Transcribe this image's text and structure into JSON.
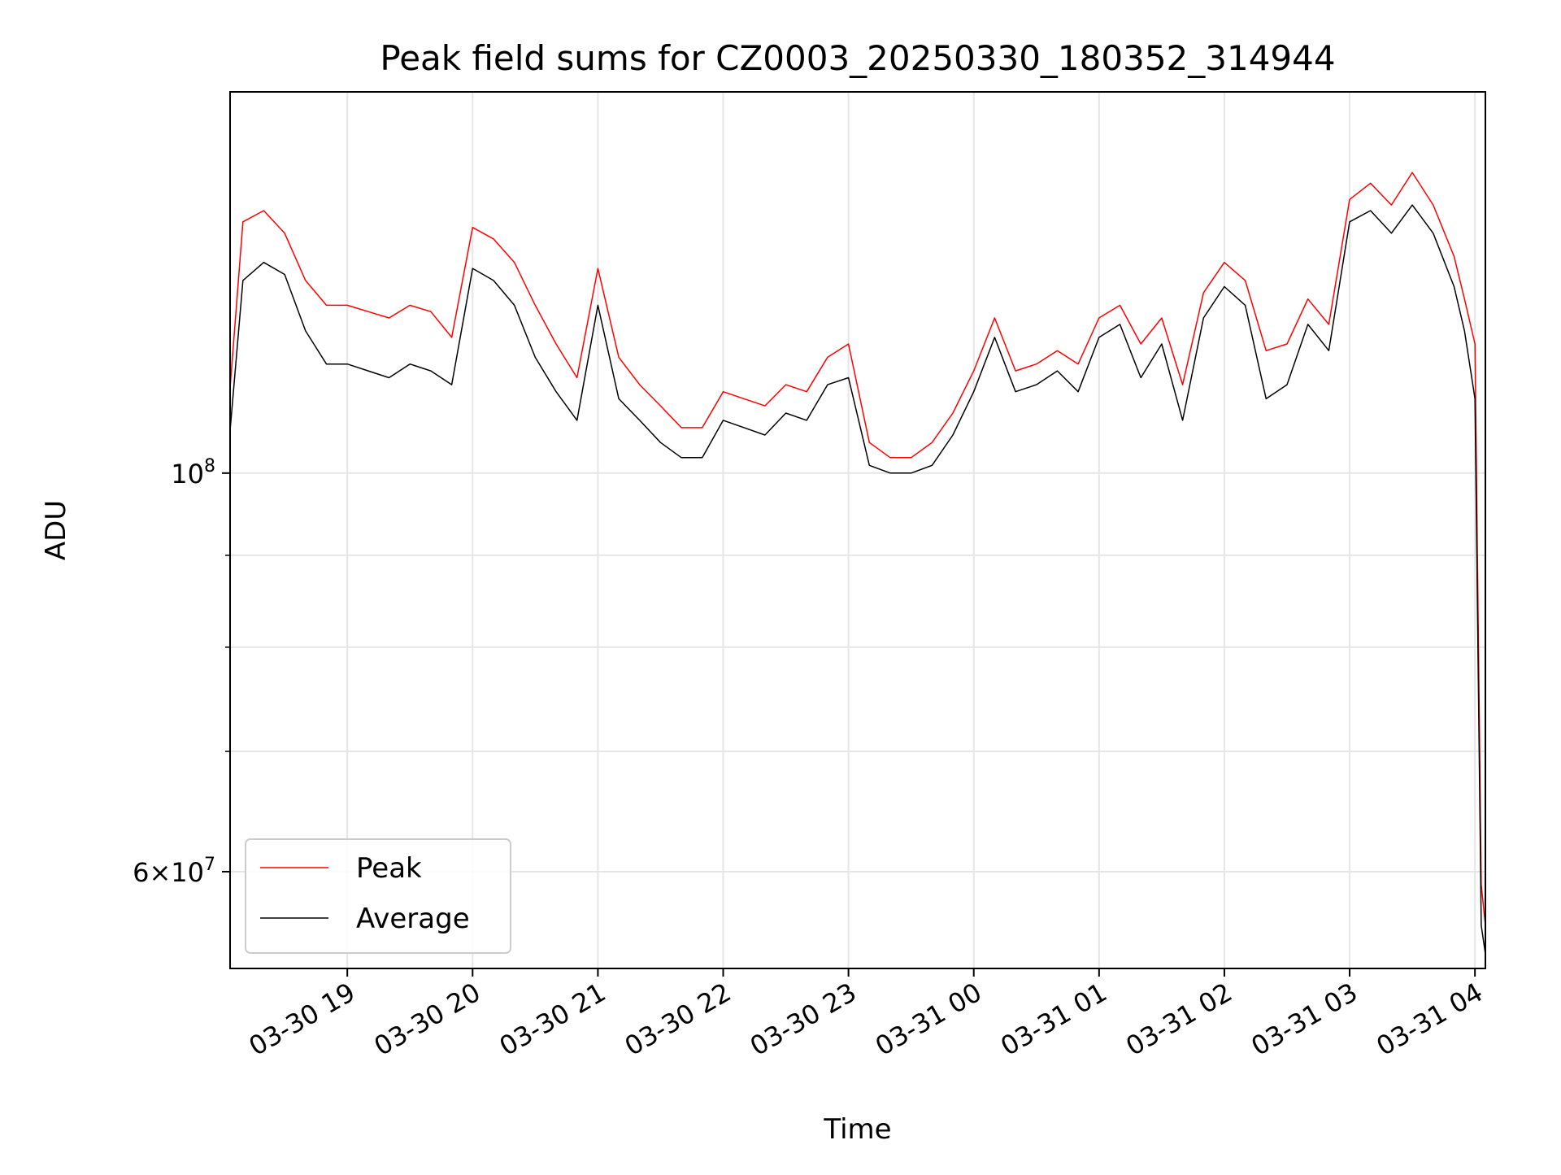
{
  "chart_data": {
    "type": "line",
    "title": "Peak field sums for CZ0003_20250330_180352_314944",
    "xlabel": "Time",
    "ylabel": "ADU",
    "yscale": "log",
    "grid": true,
    "legend_placement": "lower-left",
    "xlim": [
      "2025-03-30 18:03:52",
      "2025-03-31 04:05:00"
    ],
    "ylim": [
      53000000,
      163000000
    ],
    "x_ticks": [
      {
        "value": "2025-03-30 19:00",
        "label": "03-30 19"
      },
      {
        "value": "2025-03-30 20:00",
        "label": "03-30 20"
      },
      {
        "value": "2025-03-30 21:00",
        "label": "03-30 21"
      },
      {
        "value": "2025-03-30 22:00",
        "label": "03-30 22"
      },
      {
        "value": "2025-03-30 23:00",
        "label": "03-30 23"
      },
      {
        "value": "2025-03-31 00:00",
        "label": "03-31 00"
      },
      {
        "value": "2025-03-31 01:00",
        "label": "03-31 01"
      },
      {
        "value": "2025-03-31 02:00",
        "label": "03-31 02"
      },
      {
        "value": "2025-03-31 03:00",
        "label": "03-31 03"
      },
      {
        "value": "2025-03-31 04:00",
        "label": "03-31 04"
      }
    ],
    "y_ticks": [
      {
        "value": 100000000,
        "base": "10",
        "exp": "8"
      },
      {
        "value": 60000000,
        "mantissa": "6",
        "base": "10",
        "exp": "7"
      }
    ],
    "y_minor_ticks": [
      70000000,
      80000000,
      90000000
    ],
    "series": [
      {
        "name": "Peak",
        "color": "#ff0000",
        "x": [
          "2025-03-30 18:04",
          "2025-03-30 18:10",
          "2025-03-30 18:20",
          "2025-03-30 18:30",
          "2025-03-30 18:40",
          "2025-03-30 18:50",
          "2025-03-30 19:00",
          "2025-03-30 19:10",
          "2025-03-30 19:20",
          "2025-03-30 19:30",
          "2025-03-30 19:40",
          "2025-03-30 19:50",
          "2025-03-30 20:00",
          "2025-03-30 20:10",
          "2025-03-30 20:20",
          "2025-03-30 20:30",
          "2025-03-30 20:40",
          "2025-03-30 20:50",
          "2025-03-30 21:00",
          "2025-03-30 21:10",
          "2025-03-30 21:20",
          "2025-03-30 21:30",
          "2025-03-30 21:40",
          "2025-03-30 21:50",
          "2025-03-30 22:00",
          "2025-03-30 22:10",
          "2025-03-30 22:20",
          "2025-03-30 22:30",
          "2025-03-30 22:40",
          "2025-03-30 22:50",
          "2025-03-30 23:00",
          "2025-03-30 23:10",
          "2025-03-30 23:20",
          "2025-03-30 23:30",
          "2025-03-30 23:40",
          "2025-03-30 23:50",
          "2025-03-31 00:00",
          "2025-03-31 00:10",
          "2025-03-31 00:20",
          "2025-03-31 00:30",
          "2025-03-31 00:40",
          "2025-03-31 00:50",
          "2025-03-31 01:00",
          "2025-03-31 01:10",
          "2025-03-31 01:20",
          "2025-03-31 01:30",
          "2025-03-31 01:40",
          "2025-03-31 01:50",
          "2025-03-31 02:00",
          "2025-03-31 02:10",
          "2025-03-31 02:20",
          "2025-03-31 02:30",
          "2025-03-31 02:40",
          "2025-03-31 02:50",
          "2025-03-31 03:00",
          "2025-03-31 03:10",
          "2025-03-31 03:20",
          "2025-03-31 03:30",
          "2025-03-31 03:40",
          "2025-03-31 03:50",
          "2025-03-31 03:55",
          "2025-03-31 04:00",
          "2025-03-31 04:03",
          "2025-03-31 04:05"
        ],
        "values": [
          112000000,
          138000000,
          140000000,
          136000000,
          128000000,
          124000000,
          124000000,
          123000000,
          122000000,
          124000000,
          123000000,
          119000000,
          137000000,
          135000000,
          131000000,
          124000000,
          118000000,
          113000000,
          130000000,
          116000000,
          112000000,
          109000000,
          106000000,
          106000000,
          111000000,
          110000000,
          109000000,
          112000000,
          111000000,
          116000000,
          118000000,
          104000000,
          102000000,
          102000000,
          104000000,
          108000000,
          114000000,
          122000000,
          114000000,
          115000000,
          117000000,
          115000000,
          122000000,
          124000000,
          118000000,
          122000000,
          112000000,
          126000000,
          131000000,
          128000000,
          117000000,
          118000000,
          125000000,
          121000000,
          142000000,
          145000000,
          141000000,
          147000000,
          141000000,
          132000000,
          125000000,
          118000000,
          59000000,
          56000000
        ]
      },
      {
        "name": "Average",
        "color": "#000000",
        "x": [
          "2025-03-30 18:04",
          "2025-03-30 18:10",
          "2025-03-30 18:20",
          "2025-03-30 18:30",
          "2025-03-30 18:40",
          "2025-03-30 18:50",
          "2025-03-30 19:00",
          "2025-03-30 19:10",
          "2025-03-30 19:20",
          "2025-03-30 19:30",
          "2025-03-30 19:40",
          "2025-03-30 19:50",
          "2025-03-30 20:00",
          "2025-03-30 20:10",
          "2025-03-30 20:20",
          "2025-03-30 20:30",
          "2025-03-30 20:40",
          "2025-03-30 20:50",
          "2025-03-30 21:00",
          "2025-03-30 21:10",
          "2025-03-30 21:20",
          "2025-03-30 21:30",
          "2025-03-30 21:40",
          "2025-03-30 21:50",
          "2025-03-30 22:00",
          "2025-03-30 22:10",
          "2025-03-30 22:20",
          "2025-03-30 22:30",
          "2025-03-30 22:40",
          "2025-03-30 22:50",
          "2025-03-30 23:00",
          "2025-03-30 23:10",
          "2025-03-30 23:20",
          "2025-03-30 23:30",
          "2025-03-30 23:40",
          "2025-03-30 23:50",
          "2025-03-31 00:00",
          "2025-03-31 00:10",
          "2025-03-31 00:20",
          "2025-03-31 00:30",
          "2025-03-31 00:40",
          "2025-03-31 00:50",
          "2025-03-31 01:00",
          "2025-03-31 01:10",
          "2025-03-31 01:20",
          "2025-03-31 01:30",
          "2025-03-31 01:40",
          "2025-03-31 01:50",
          "2025-03-31 02:00",
          "2025-03-31 02:10",
          "2025-03-31 02:20",
          "2025-03-31 02:30",
          "2025-03-31 02:40",
          "2025-03-31 02:50",
          "2025-03-31 03:00",
          "2025-03-31 03:10",
          "2025-03-31 03:20",
          "2025-03-31 03:30",
          "2025-03-31 03:40",
          "2025-03-31 03:50",
          "2025-03-31 03:55",
          "2025-03-31 04:00",
          "2025-03-31 04:03",
          "2025-03-31 04:05"
        ],
        "values": [
          106000000,
          128000000,
          131000000,
          129000000,
          120000000,
          115000000,
          115000000,
          114000000,
          113000000,
          115000000,
          114000000,
          112000000,
          130000000,
          128000000,
          124000000,
          116000000,
          111000000,
          107000000,
          124000000,
          110000000,
          107000000,
          104000000,
          102000000,
          102000000,
          107000000,
          106000000,
          105000000,
          108000000,
          107000000,
          112000000,
          113000000,
          101000000,
          100000000,
          100000000,
          101000000,
          105000000,
          111000000,
          119000000,
          111000000,
          112000000,
          114000000,
          111000000,
          119000000,
          121000000,
          113000000,
          118000000,
          107000000,
          122000000,
          127000000,
          124000000,
          110000000,
          112000000,
          121000000,
          117000000,
          138000000,
          140000000,
          136000000,
          141000000,
          136000000,
          127000000,
          120000000,
          110000000,
          56000000,
          54000000
        ]
      }
    ]
  }
}
